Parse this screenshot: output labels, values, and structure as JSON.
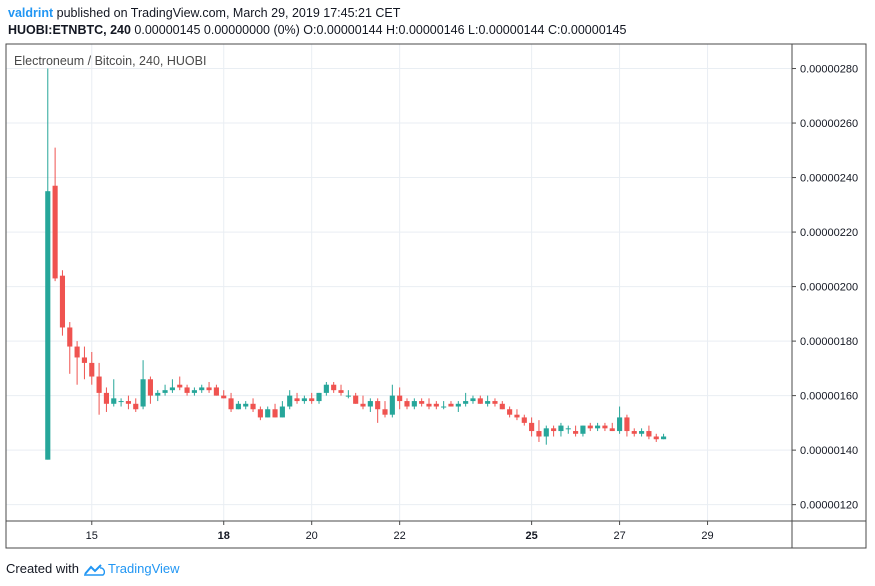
{
  "header": {
    "author": "valdrint",
    "published_text": "published on TradingView.com, March 29, 2019 17:45:21 CET",
    "symbol": "HUOBI:ETNBTC, 240",
    "ohlc_text": "0.00000145 0.00000000 (0%) O:0.00000144 H:0.00000146 L:0.00000144 C:0.00000145"
  },
  "footer": {
    "created_with": "Created with",
    "brand": "TradingView",
    "logo_icon": "tradingview-cloud-icon"
  },
  "colors": {
    "up": "#26a69a",
    "down": "#ef5350",
    "grid": "#e9eef3",
    "border": "#4a4a4a",
    "text": "#131722",
    "brand": "#2196f3"
  },
  "chart_data": {
    "type": "candlestick",
    "title": "Electroneum / Bitcoin, 240, HUOBI",
    "ylim": [
      1.14e-06,
      2.89e-06
    ],
    "y_ticks": [
      "0.00000120",
      "0.00000140",
      "0.00000160",
      "0.00000180",
      "0.00000200",
      "0.00000220",
      "0.00000240",
      "0.00000260",
      "0.00000280"
    ],
    "x_ticks": [
      {
        "label": "15",
        "day": 15,
        "bold": false
      },
      {
        "label": "18",
        "day": 18,
        "bold": true
      },
      {
        "label": "20",
        "day": 20,
        "bold": false
      },
      {
        "label": "22",
        "day": 22,
        "bold": false
      },
      {
        "label": "25",
        "day": 25,
        "bold": true
      },
      {
        "label": "27",
        "day": 27,
        "bold": false
      },
      {
        "label": "29",
        "day": 29,
        "bold": false
      }
    ],
    "x_range_days": [
      13.05,
      30.92
    ],
    "candle_start_day": 14.0,
    "candle_step_days": 0.16667,
    "grid": true,
    "candles": [
      [
        1.365e-06,
        2.8e-06,
        1.365e-06,
        2.35e-06
      ],
      [
        2.37e-06,
        2.51e-06,
        2.02e-06,
        2.03e-06
      ],
      [
        2.04e-06,
        2.06e-06,
        1.82e-06,
        1.85e-06
      ],
      [
        1.85e-06,
        1.87e-06,
        1.68e-06,
        1.78e-06
      ],
      [
        1.78e-06,
        1.8e-06,
        1.64e-06,
        1.74e-06
      ],
      [
        1.74e-06,
        1.78e-06,
        1.66e-06,
        1.72e-06
      ],
      [
        1.72e-06,
        1.76e-06,
        1.64e-06,
        1.67e-06
      ],
      [
        1.67e-06,
        1.72e-06,
        1.53e-06,
        1.61e-06
      ],
      [
        1.61e-06,
        1.63e-06,
        1.54e-06,
        1.57e-06
      ],
      [
        1.57e-06,
        1.66e-06,
        1.56e-06,
        1.59e-06
      ],
      [
        1.58e-06,
        1.59e-06,
        1.56e-06,
        1.58e-06
      ],
      [
        1.58e-06,
        1.6e-06,
        1.55e-06,
        1.57e-06
      ],
      [
        1.57e-06,
        1.59e-06,
        1.54e-06,
        1.55e-06
      ],
      [
        1.56e-06,
        1.73e-06,
        1.55e-06,
        1.66e-06
      ],
      [
        1.66e-06,
        1.67e-06,
        1.57e-06,
        1.6e-06
      ],
      [
        1.6e-06,
        1.62e-06,
        1.58e-06,
        1.61e-06
      ],
      [
        1.61e-06,
        1.64e-06,
        1.6e-06,
        1.62e-06
      ],
      [
        1.62e-06,
        1.66e-06,
        1.61e-06,
        1.63e-06
      ],
      [
        1.64e-06,
        1.67e-06,
        1.62e-06,
        1.63e-06
      ],
      [
        1.63e-06,
        1.64e-06,
        1.6e-06,
        1.61e-06
      ],
      [
        1.61e-06,
        1.63e-06,
        1.6e-06,
        1.62e-06
      ],
      [
        1.62e-06,
        1.64e-06,
        1.61e-06,
        1.63e-06
      ],
      [
        1.63e-06,
        1.65e-06,
        1.61e-06,
        1.62e-06
      ],
      [
        1.63e-06,
        1.64e-06,
        1.6e-06,
        1.6e-06
      ],
      [
        1.6e-06,
        1.62e-06,
        1.59e-06,
        1.59e-06
      ],
      [
        1.59e-06,
        1.61e-06,
        1.54e-06,
        1.55e-06
      ],
      [
        1.55e-06,
        1.58e-06,
        1.55e-06,
        1.57e-06
      ],
      [
        1.56e-06,
        1.58e-06,
        1.55e-06,
        1.57e-06
      ],
      [
        1.57e-06,
        1.59e-06,
        1.54e-06,
        1.55e-06
      ],
      [
        1.55e-06,
        1.56e-06,
        1.51e-06,
        1.52e-06
      ],
      [
        1.52e-06,
        1.56e-06,
        1.52e-06,
        1.55e-06
      ],
      [
        1.55e-06,
        1.57e-06,
        1.52e-06,
        1.52e-06
      ],
      [
        1.52e-06,
        1.58e-06,
        1.52e-06,
        1.56e-06
      ],
      [
        1.56e-06,
        1.62e-06,
        1.55e-06,
        1.6e-06
      ],
      [
        1.59e-06,
        1.61e-06,
        1.57e-06,
        1.58e-06
      ],
      [
        1.58e-06,
        1.6e-06,
        1.57e-06,
        1.59e-06
      ],
      [
        1.59e-06,
        1.61e-06,
        1.57e-06,
        1.58e-06
      ],
      [
        1.58e-06,
        1.61e-06,
        1.57e-06,
        1.61e-06
      ],
      [
        1.61e-06,
        1.65e-06,
        1.6e-06,
        1.64e-06
      ],
      [
        1.64e-06,
        1.65e-06,
        1.61e-06,
        1.62e-06
      ],
      [
        1.62e-06,
        1.64e-06,
        1.6e-06,
        1.61e-06
      ],
      [
        1.6e-06,
        1.62e-06,
        1.59e-06,
        1.6e-06
      ],
      [
        1.6e-06,
        1.61e-06,
        1.57e-06,
        1.57e-06
      ],
      [
        1.57e-06,
        1.6e-06,
        1.55e-06,
        1.56e-06
      ],
      [
        1.56e-06,
        1.59e-06,
        1.54e-06,
        1.58e-06
      ],
      [
        1.58e-06,
        1.59e-06,
        1.5e-06,
        1.55e-06
      ],
      [
        1.55e-06,
        1.58e-06,
        1.52e-06,
        1.53e-06
      ],
      [
        1.53e-06,
        1.64e-06,
        1.52e-06,
        1.6e-06
      ],
      [
        1.6e-06,
        1.63e-06,
        1.55e-06,
        1.58e-06
      ],
      [
        1.58e-06,
        1.59e-06,
        1.55e-06,
        1.56e-06
      ],
      [
        1.56e-06,
        1.59e-06,
        1.55e-06,
        1.58e-06
      ],
      [
        1.58e-06,
        1.59e-06,
        1.56e-06,
        1.57e-06
      ],
      [
        1.57e-06,
        1.59e-06,
        1.55e-06,
        1.56e-06
      ],
      [
        1.57e-06,
        1.58e-06,
        1.55e-06,
        1.56e-06
      ],
      [
        1.56e-06,
        1.58e-06,
        1.55e-06,
        1.56e-06
      ],
      [
        1.57e-06,
        1.58e-06,
        1.56e-06,
        1.56e-06
      ],
      [
        1.56e-06,
        1.58e-06,
        1.54e-06,
        1.57e-06
      ],
      [
        1.57e-06,
        1.61e-06,
        1.56e-06,
        1.58e-06
      ],
      [
        1.58e-06,
        1.6e-06,
        1.57e-06,
        1.59e-06
      ],
      [
        1.59e-06,
        1.6e-06,
        1.57e-06,
        1.57e-06
      ],
      [
        1.57e-06,
        1.6e-06,
        1.56e-06,
        1.58e-06
      ],
      [
        1.58e-06,
        1.59e-06,
        1.56e-06,
        1.57e-06
      ],
      [
        1.57e-06,
        1.58e-06,
        1.55e-06,
        1.55e-06
      ],
      [
        1.55e-06,
        1.56e-06,
        1.52e-06,
        1.53e-06
      ],
      [
        1.53e-06,
        1.55e-06,
        1.51e-06,
        1.52e-06
      ],
      [
        1.52e-06,
        1.53e-06,
        1.49e-06,
        1.5e-06
      ],
      [
        1.5e-06,
        1.52e-06,
        1.45e-06,
        1.47e-06
      ],
      [
        1.47e-06,
        1.51e-06,
        1.43e-06,
        1.45e-06
      ],
      [
        1.45e-06,
        1.49e-06,
        1.42e-06,
        1.48e-06
      ],
      [
        1.48e-06,
        1.49e-06,
        1.45e-06,
        1.47e-06
      ],
      [
        1.47e-06,
        1.5e-06,
        1.45e-06,
        1.49e-06
      ],
      [
        1.48e-06,
        1.49e-06,
        1.46e-06,
        1.48e-06
      ],
      [
        1.47e-06,
        1.49e-06,
        1.45e-06,
        1.46e-06
      ],
      [
        1.46e-06,
        1.49e-06,
        1.45e-06,
        1.49e-06
      ],
      [
        1.49e-06,
        1.5e-06,
        1.47e-06,
        1.48e-06
      ],
      [
        1.48e-06,
        1.5e-06,
        1.47e-06,
        1.49e-06
      ],
      [
        1.49e-06,
        1.5e-06,
        1.47e-06,
        1.48e-06
      ],
      [
        1.48e-06,
        1.5e-06,
        1.47e-06,
        1.47e-06
      ],
      [
        1.47e-06,
        1.56e-06,
        1.46e-06,
        1.52e-06
      ],
      [
        1.52e-06,
        1.53e-06,
        1.45e-06,
        1.47e-06
      ],
      [
        1.47e-06,
        1.48e-06,
        1.45e-06,
        1.46e-06
      ],
      [
        1.46e-06,
        1.48e-06,
        1.45e-06,
        1.47e-06
      ],
      [
        1.47e-06,
        1.49e-06,
        1.44e-06,
        1.45e-06
      ],
      [
        1.45e-06,
        1.46e-06,
        1.43e-06,
        1.44e-06
      ],
      [
        1.44e-06,
        1.46e-06,
        1.44e-06,
        1.45e-06
      ]
    ]
  }
}
